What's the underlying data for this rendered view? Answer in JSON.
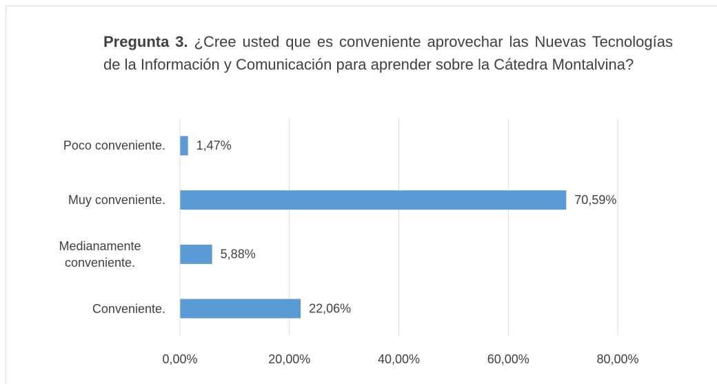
{
  "chart_data": {
    "type": "hbar",
    "title_bold": "Pregunta 3.",
    "title": "¿Cree usted que es conveniente aprovechar las Nuevas Tecnologías de la Información y Comunicación para aprender sobre la Cátedra Montalvina?",
    "categories": [
      "Poco conveniente.",
      "Muy conveniente.",
      "Medianamente conveniente.",
      "Conveniente."
    ],
    "values": [
      1.47,
      70.59,
      5.88,
      22.06
    ],
    "value_labels": [
      "1,47%",
      "70,59%",
      "5,88%",
      "22,06%"
    ],
    "color": "#5b9bd5",
    "xlim": [
      0,
      80
    ],
    "xticks": [
      {
        "value": 0,
        "label": "0,00%"
      },
      {
        "value": 20,
        "label": "20,00%"
      },
      {
        "value": 40,
        "label": "40,00%"
      },
      {
        "value": 60,
        "label": "60,00%"
      },
      {
        "value": 80,
        "label": "80,00%"
      }
    ],
    "grid": true
  }
}
